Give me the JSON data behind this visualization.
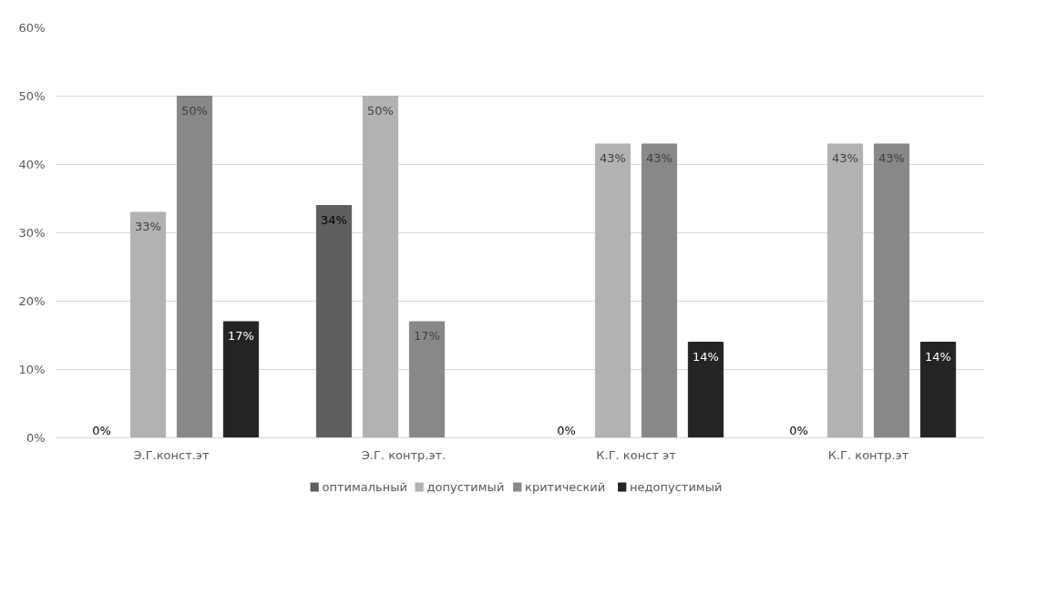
{
  "chart_data": {
    "type": "bar",
    "categories": [
      "Э.Г.конст.эт",
      "Э.Г. контр.эт.",
      "К.Г. конст эт",
      "К.Г. контр.эт"
    ],
    "series": [
      {
        "name": "оптимальный",
        "color": "#5e5e5e",
        "values": [
          0,
          34,
          0,
          0
        ],
        "value_labels": [
          "0%",
          "34%",
          "0%",
          "0%"
        ]
      },
      {
        "name": "допустимый",
        "color": "#b2b2b2",
        "values": [
          33,
          50,
          43,
          43
        ],
        "value_labels": [
          "33%",
          "50%",
          "43%",
          "43%"
        ]
      },
      {
        "name": "критический",
        "color": "#888888",
        "values": [
          50,
          17,
          43,
          43
        ],
        "value_labels": [
          "50%",
          "17%",
          "43%",
          "43%"
        ]
      },
      {
        "name": "недопустимый",
        "color": "#242424",
        "values": [
          17,
          0,
          14,
          14
        ],
        "value_labels": [
          "17%",
          null,
          "14%",
          "14%"
        ]
      }
    ],
    "ylim": [
      0,
      60
    ],
    "yticks": [
      {
        "value": 0,
        "label": "0%"
      },
      {
        "value": 10,
        "label": "10%"
      },
      {
        "value": 20,
        "label": "20%"
      },
      {
        "value": 30,
        "label": "30%"
      },
      {
        "value": 40,
        "label": "40%"
      },
      {
        "value": 50,
        "label": "50%"
      },
      {
        "value": 60,
        "label": "60%"
      }
    ],
    "grid": "y",
    "legend": "bottom"
  }
}
